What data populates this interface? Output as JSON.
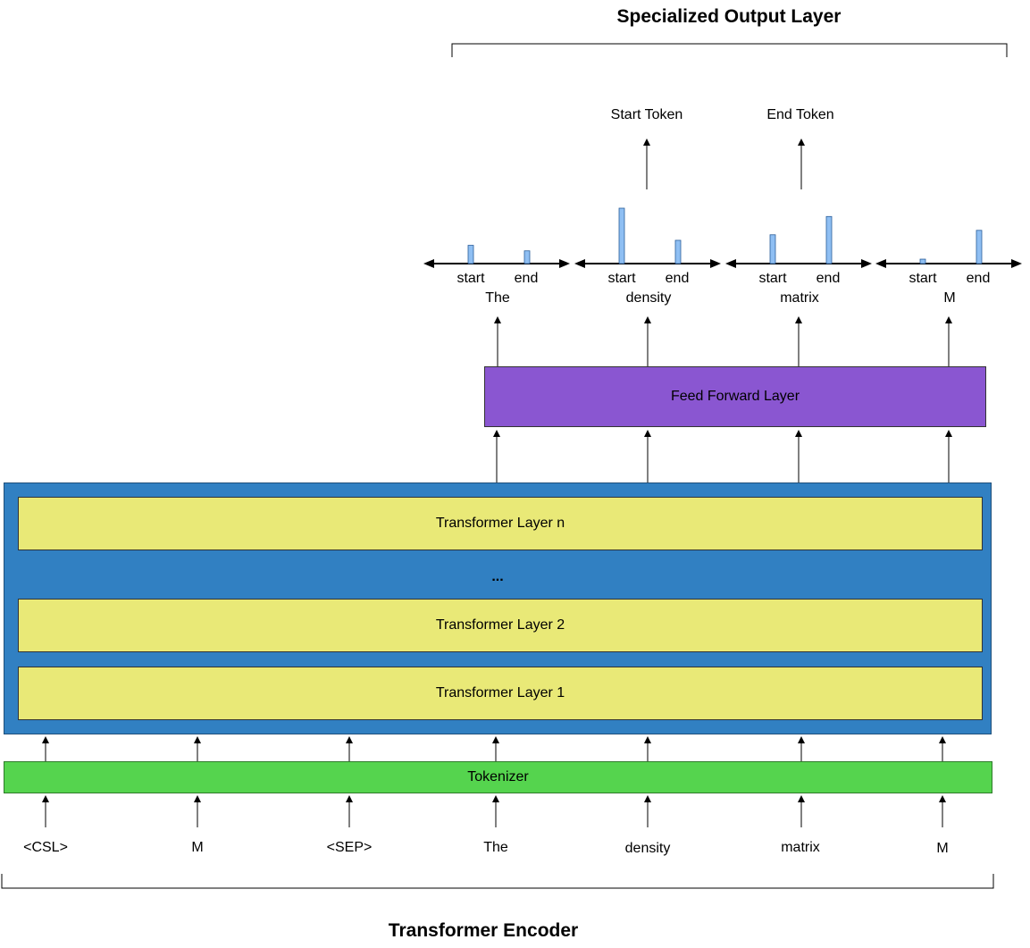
{
  "header": {
    "title": "Specialized Output Layer"
  },
  "footer": {
    "title": "Transformer Encoder"
  },
  "outputs": {
    "start_token": "Start Token",
    "end_token": "End Token"
  },
  "feed_forward": {
    "label": "Feed Forward Layer"
  },
  "encoder": {
    "layers": [
      "Transformer Layer n",
      "...",
      "Transformer Layer 2",
      "Transformer Layer 1"
    ]
  },
  "tokenizer": {
    "label": "Tokenizer"
  },
  "input_tokens": [
    "<CSL>",
    "M",
    "<SEP>",
    "The",
    "density",
    "matrix",
    "M"
  ],
  "score_groups": [
    {
      "token": "The",
      "start_label": "start",
      "end_label": "end",
      "start": 0.33,
      "end": 0.23
    },
    {
      "token": "density",
      "start_label": "start",
      "end_label": "end",
      "start": 1.0,
      "end": 0.42
    },
    {
      "token": "matrix",
      "start_label": "start",
      "end_label": "end",
      "start": 0.52,
      "end": 0.85
    },
    {
      "token": "M",
      "start_label": "start",
      "end_label": "end",
      "start": 0.08,
      "end": 0.6
    }
  ],
  "colors": {
    "encoder": "#3180c2",
    "transformer_layer": "#e9e977",
    "tokenizer": "#55d44e",
    "feed_forward": "#8a56d1",
    "score_bar": "#8fbff3"
  }
}
